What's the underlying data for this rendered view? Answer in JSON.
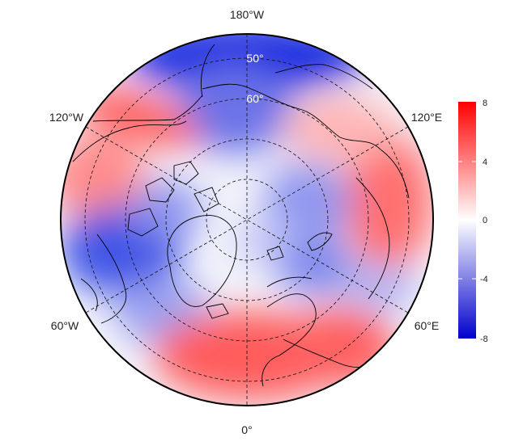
{
  "map": {
    "projection": "north-polar-stereographic",
    "longitude_labels": {
      "top": "180°W",
      "upper_left": "120°W",
      "upper_right": "120°E",
      "lower_left": "60°W",
      "lower_right": "60°E",
      "bottom": "0°"
    },
    "latitude_labels": [
      "50°",
      "60°"
    ],
    "graticule": "dashed",
    "coastlines": "black"
  },
  "colorbar": {
    "ticks": [
      "8",
      "4",
      "0",
      "-4",
      "-8"
    ],
    "min": -8,
    "max": 8,
    "colors": {
      "high": "#ff0000",
      "mid": "#ffffff",
      "low": "#0000cc"
    }
  },
  "anomaly_field": {
    "description_values_by_region": {
      "north_pacific_bering": -6,
      "alaska_strip": 5,
      "north_america_west": 4,
      "canada_labrador": -5,
      "greenland": -1,
      "arctic_ocean": -1,
      "siberia_east": 2,
      "central_asia": 5,
      "europe": 5,
      "north_atlantic": 4,
      "scandinavia_barents": -2
    }
  }
}
